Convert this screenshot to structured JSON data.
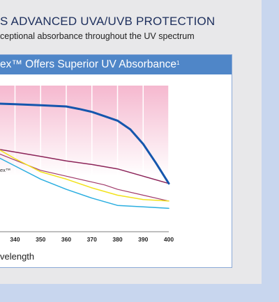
{
  "headline": "S ADVANCED UVA/UVB PROTECTION",
  "subline": "ceptional absorbance throughout the UV spectrum",
  "chart_header": {
    "text": "ex™ Offers Superior UV Absorbance",
    "footnote": "1"
  },
  "colors": {
    "background": "#c8d6ee",
    "panel": "#e8e8ea",
    "header": "#4f86c8",
    "band_top": "#f5b8cf",
    "band_bottom": "#ffffff"
  },
  "chart_data": {
    "type": "line",
    "xlabel": "velength",
    "x_ticks": [
      340,
      350,
      360,
      370,
      380,
      390,
      400
    ],
    "x_tick_labels": [
      "340",
      "350",
      "360",
      "370",
      "380",
      "390",
      "400"
    ],
    "xlim": [
      320,
      400
    ],
    "ylim": [
      0,
      1
    ],
    "grid": true,
    "series": [
      {
        "name": "ex™",
        "color": "#1556ad",
        "width": 3,
        "x": [
          320,
          330,
          340,
          350,
          360,
          365,
          370,
          375,
          380,
          385,
          390,
          395,
          400
        ],
        "y": [
          0.88,
          0.878,
          0.873,
          0.865,
          0.857,
          0.84,
          0.82,
          0.79,
          0.76,
          0.7,
          0.6,
          0.47,
          0.33
        ]
      },
      {
        "name": "",
        "color": "#8b2358",
        "width": 1.5,
        "x": [
          320,
          330,
          340,
          350,
          360,
          370,
          380,
          390,
          400
        ],
        "y": [
          0.6,
          0.575,
          0.545,
          0.515,
          0.485,
          0.46,
          0.43,
          0.38,
          0.33
        ]
      },
      {
        "name": "",
        "color": "#a03a6a",
        "width": 1.2,
        "x": [
          320,
          330,
          340,
          350,
          360,
          370,
          375,
          380,
          390,
          400
        ],
        "y": [
          0.6,
          0.56,
          0.49,
          0.42,
          0.38,
          0.34,
          0.32,
          0.29,
          0.25,
          0.21
        ]
      },
      {
        "name": "",
        "color": "#f2e21c",
        "width": 1.5,
        "x": [
          320,
          330,
          340,
          350,
          360,
          370,
          380,
          390,
          400
        ],
        "y": [
          0.67,
          0.6,
          0.5,
          0.41,
          0.36,
          0.3,
          0.25,
          0.22,
          0.21
        ]
      },
      {
        "name": "",
        "color": "#2aaee0",
        "width": 1.5,
        "x": [
          320,
          330,
          340,
          350,
          360,
          370,
          380,
          390,
          400
        ],
        "y": [
          0.62,
          0.54,
          0.45,
          0.36,
          0.29,
          0.23,
          0.18,
          0.17,
          0.16
        ]
      }
    ]
  }
}
